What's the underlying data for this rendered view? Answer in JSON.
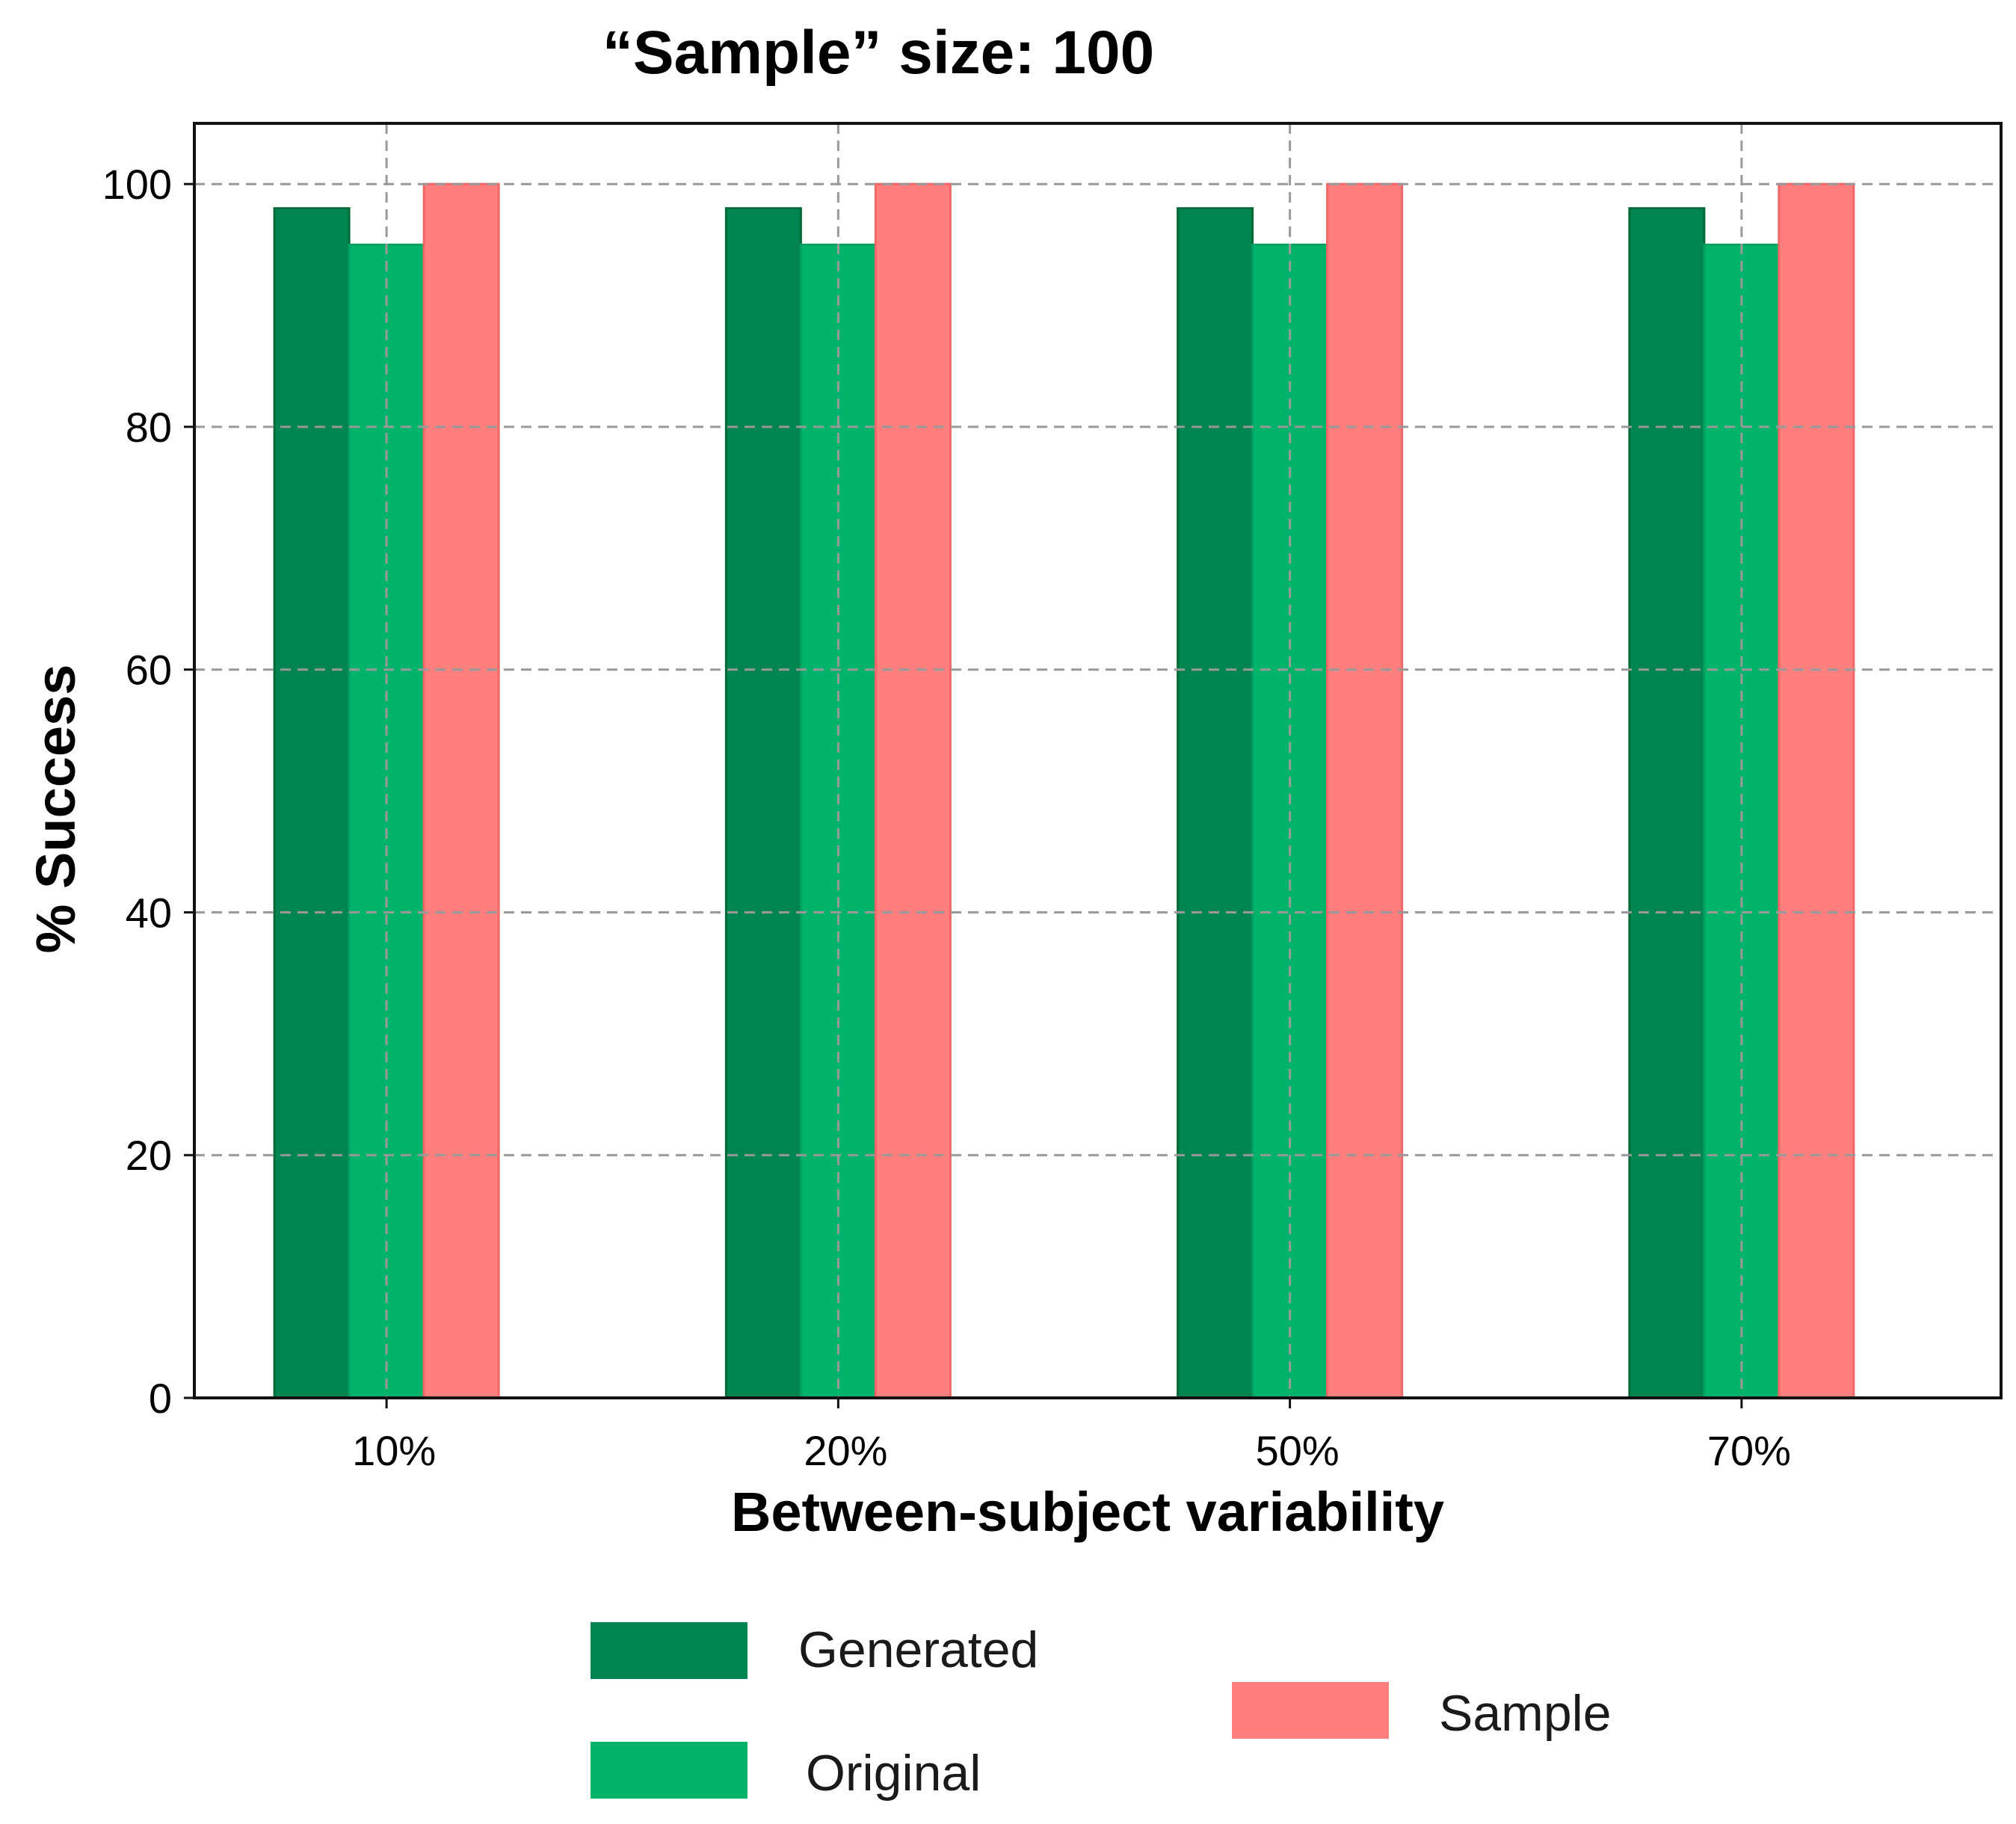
{
  "chart_data": {
    "type": "bar",
    "title": "“Sample” size: 100",
    "xlabel": "Between-subject variability",
    "ylabel": "% Success",
    "categories": [
      "10%",
      "20%",
      "50%",
      "70%"
    ],
    "series": [
      {
        "name": "Generated",
        "values": [
          98,
          98,
          98,
          98
        ],
        "color": "#008450",
        "edge": "#006a36"
      },
      {
        "name": "Original",
        "values": [
          95,
          95,
          95,
          95
        ],
        "color": "#00b36b",
        "edge": "#00a060"
      },
      {
        "name": "Sample",
        "values": [
          100,
          100,
          100,
          100
        ],
        "color": "#ff7f7f",
        "edge": "#f26666"
      }
    ],
    "ylim": [
      0,
      105
    ],
    "yticks": [
      0,
      20,
      40,
      60,
      80,
      100
    ],
    "ytick_labels": [
      "0",
      "20",
      "40",
      "60",
      "80",
      "100"
    ],
    "grid": true,
    "legend_position": "bottom-center"
  }
}
